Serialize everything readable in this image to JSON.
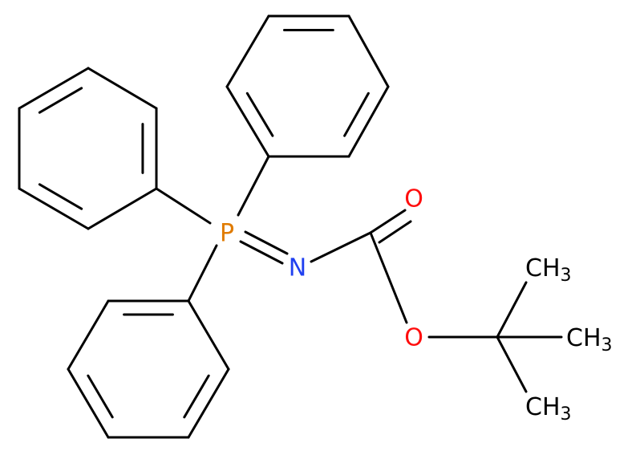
{
  "atoms": [
    {
      "label": "P"
    },
    {
      "label": "N"
    },
    {
      "label": "O"
    },
    {
      "label": "O"
    },
    {
      "label": "CH",
      "subscript": "3"
    },
    {
      "label": "CH",
      "subscript": "3"
    },
    {
      "label": "CH",
      "subscript": "3"
    }
  ]
}
